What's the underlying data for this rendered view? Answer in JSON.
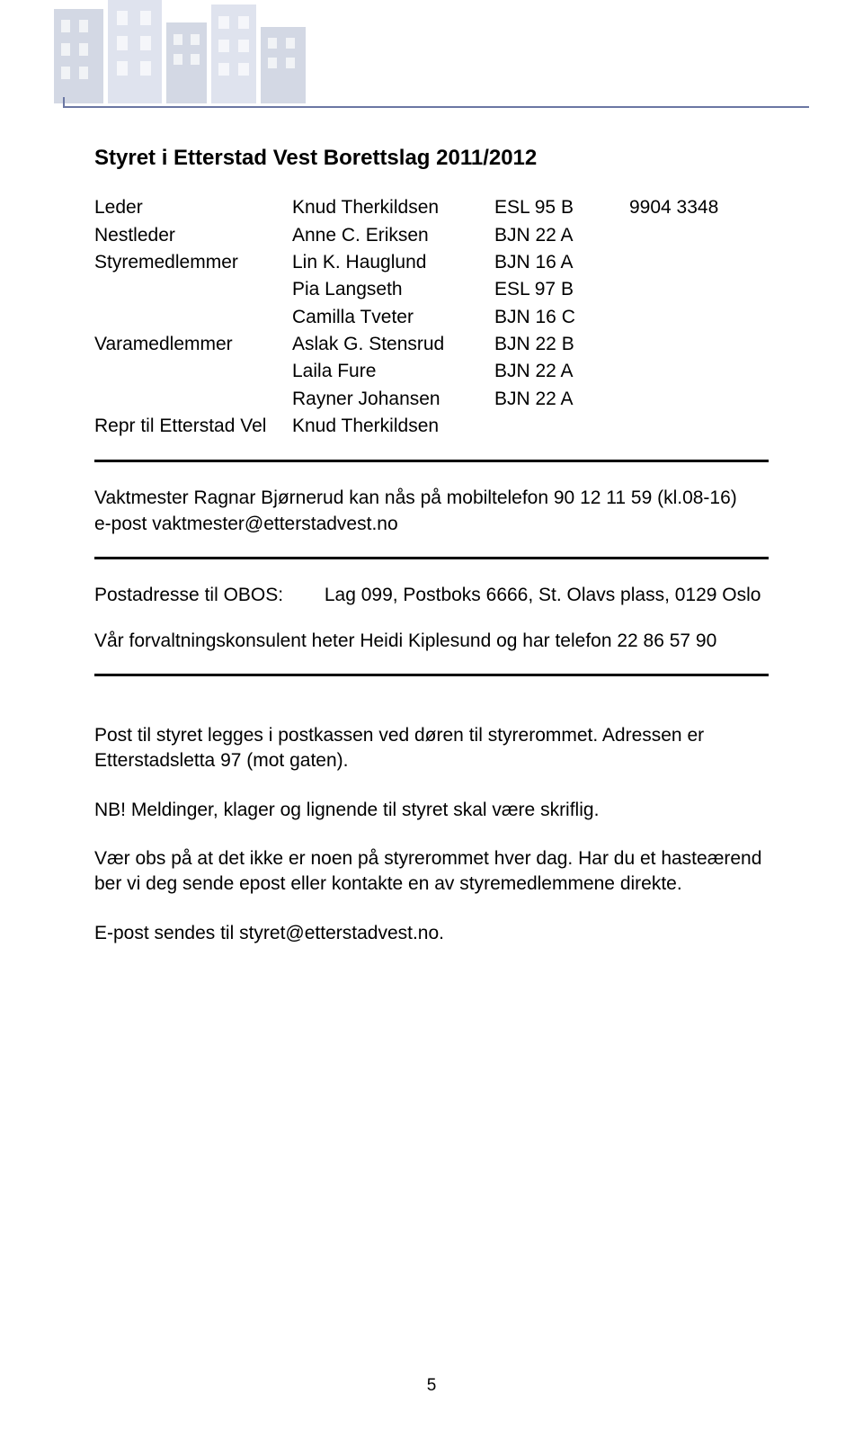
{
  "colors": {
    "text": "#000000",
    "background": "#ffffff",
    "banner_rule": "#6b77a3",
    "banner_fill_light": "#b9c3da",
    "banner_fill_dark": "#9fa9c4",
    "divider": "#000000"
  },
  "typography": {
    "body_font": "Comic Sans MS",
    "body_size_pt": 16,
    "title_size_pt": 18,
    "title_weight": "bold"
  },
  "page": {
    "number": "5"
  },
  "title": "Styret i Etterstad Vest Borettslag 2011/2012",
  "board": {
    "rows": [
      {
        "role": "Leder",
        "name": "Knud Therkildsen",
        "addr": "ESL 95 B",
        "phone": "9904 3348"
      },
      {
        "role": "Nestleder",
        "name": "Anne C. Eriksen",
        "addr": "BJN 22 A",
        "phone": ""
      },
      {
        "role": "Styremedlemmer",
        "name": "Lin K. Hauglund",
        "addr": "BJN 16 A",
        "phone": ""
      },
      {
        "role": "",
        "name": "Pia Langseth",
        "addr": "ESL 97 B",
        "phone": ""
      },
      {
        "role": "",
        "name": "Camilla Tveter",
        "addr": "BJN 16 C",
        "phone": ""
      },
      {
        "role": "Varamedlemmer",
        "name": "Aslak G. Stensrud",
        "addr": "BJN 22 B",
        "phone": ""
      },
      {
        "role": "",
        "name": "Laila Fure",
        "addr": "BJN 22 A",
        "phone": ""
      },
      {
        "role": "",
        "name": "Rayner Johansen",
        "addr": "BJN 22 A",
        "phone": ""
      },
      {
        "role": "Repr til Etterstad Vel",
        "name": "Knud Therkildsen",
        "addr": "",
        "phone": ""
      }
    ]
  },
  "vaktmester": {
    "line1": "Vaktmester Ragnar Bjørnerud kan nås på mobiltelefon 90 12 11 59 (kl.08-16)",
    "line2": "e-post vaktmester@etterstadvest.no"
  },
  "obos": {
    "label": "Postadresse til OBOS:",
    "value": "Lag 099, Postboks 6666, St. Olavs plass, 0129 Oslo",
    "consultant": "Vår forvaltningskonsulent heter Heidi Kiplesund og har telefon 22 86 57 90"
  },
  "footer_block": {
    "p1": "Post til styret legges i postkassen ved døren til styrerommet. Adressen er Etterstadsletta 97 (mot gaten).",
    "p2": "NB! Meldinger, klager og lignende til styret skal være skriflig.",
    "p3": "Vær obs på at det ikke er noen på styrerommet hver dag. Har du et hasteærend ber vi deg sende epost eller kontakte en av styremedlemmene direkte.",
    "p4": "E-post sendes til  styret@etterstadvest.no."
  }
}
